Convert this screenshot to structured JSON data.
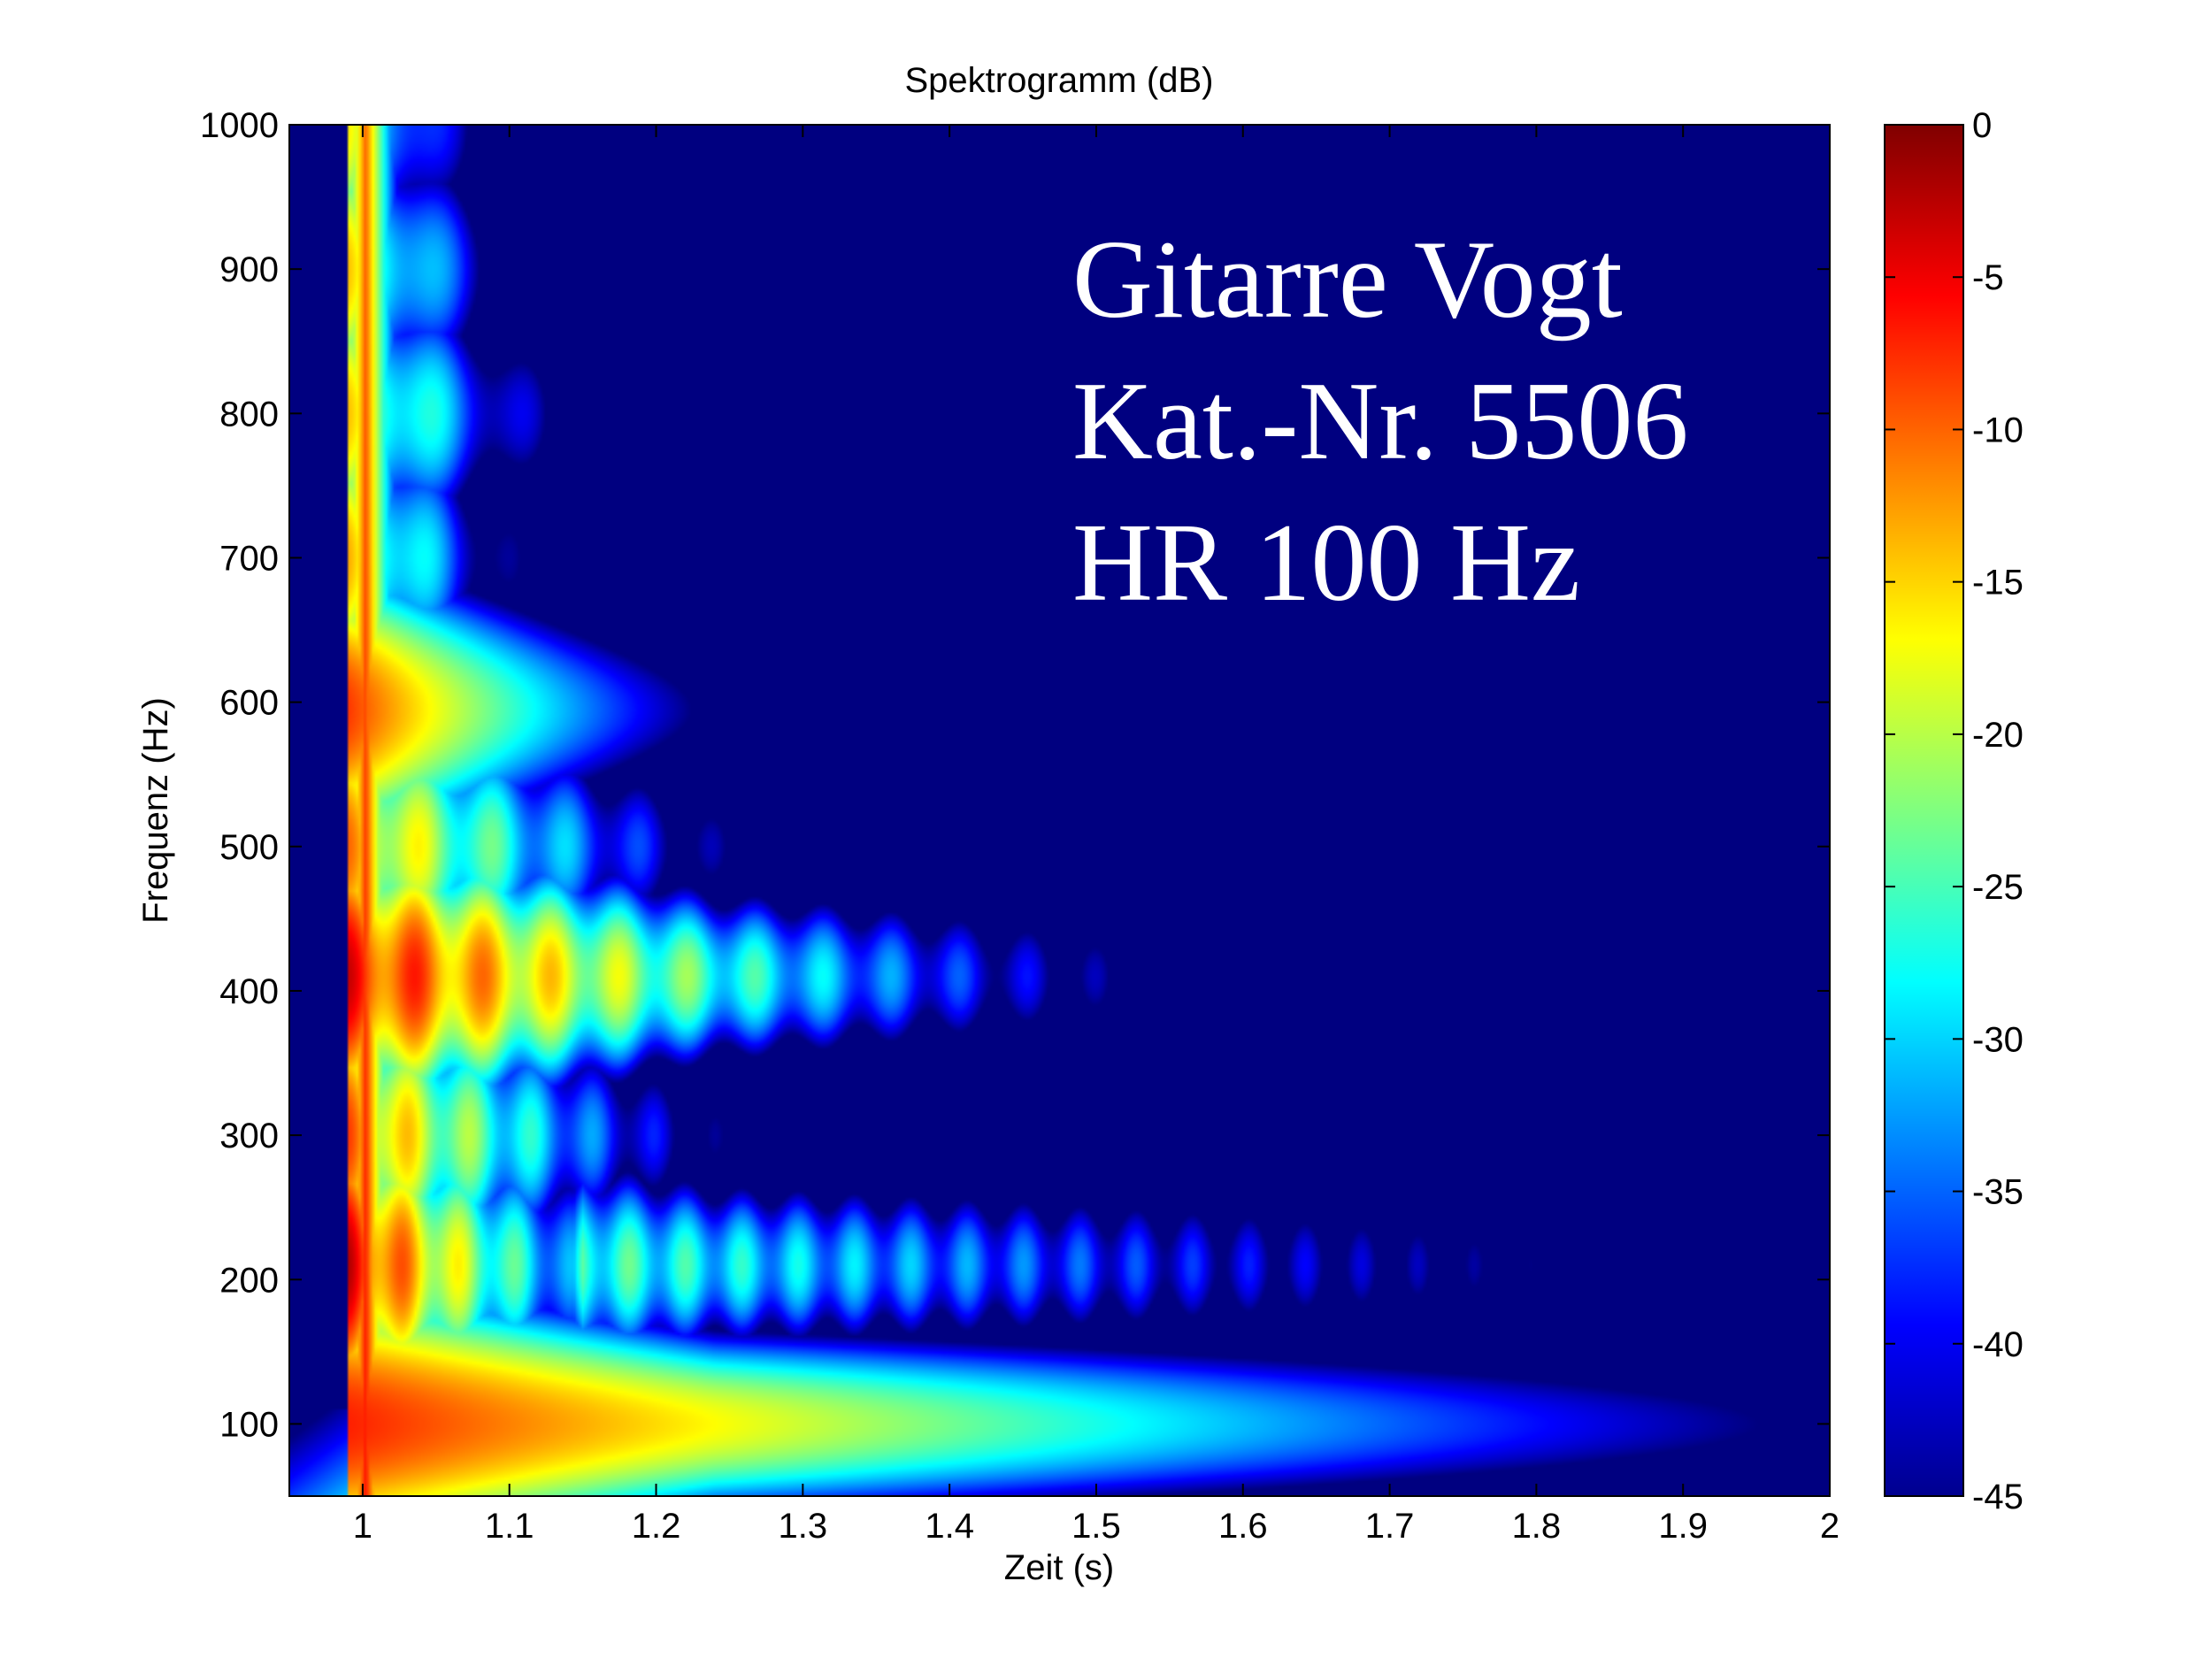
{
  "chart_data": {
    "type": "heatmap",
    "title": "Spektrogramm (dB)",
    "xlabel": "Zeit (s)",
    "ylabel": "Frequenz (Hz)",
    "xlim": [
      0.95,
      2.0
    ],
    "ylim": [
      50,
      1000
    ],
    "x_ticks": [
      1,
      1.1,
      1.2,
      1.3,
      1.4,
      1.5,
      1.6,
      1.7,
      1.8,
      1.9,
      2
    ],
    "y_ticks": [
      100,
      200,
      300,
      400,
      500,
      600,
      700,
      800,
      900,
      1000
    ],
    "colorbar": {
      "range": [
        -45,
        0
      ],
      "ticks": [
        0,
        -5,
        -10,
        -15,
        -20,
        -25,
        -30,
        -35,
        -40,
        -45
      ],
      "colormap": "jet"
    },
    "annotation_lines": [
      "Gitarre Vogt",
      "Kat.-Nr. 5506",
      "HR 100 Hz"
    ],
    "onset_time_s": 0.99,
    "partials": [
      {
        "freq_hz": 100,
        "peak_db": -7,
        "decay_end_s": 1.75,
        "modulated": false
      },
      {
        "freq_hz": 100,
        "peak_db": -38,
        "start_s": 1.78,
        "decay_end_s": 2.0,
        "modulated": true
      },
      {
        "freq_hz": 210,
        "peak_db": -2,
        "decay_end_s": 1.15,
        "modulated": true
      },
      {
        "freq_hz": 210,
        "peak_db": -22,
        "start_s": 1.15,
        "decay_end_s": 2.0,
        "modulated": true
      },
      {
        "freq_hz": 300,
        "peak_db": -8,
        "decay_end_s": 1.2,
        "modulated": true
      },
      {
        "freq_hz": 410,
        "peak_db": -3,
        "decay_end_s": 1.38,
        "modulated": true
      },
      {
        "freq_hz": 500,
        "peak_db": -10,
        "decay_end_s": 1.22,
        "modulated": true
      },
      {
        "freq_hz": 595,
        "peak_db": -8,
        "decay_end_s": 1.18,
        "modulated": false
      },
      {
        "freq_hz": 700,
        "peak_db": -13,
        "decay_end_s": 1.1,
        "modulated": true
      },
      {
        "freq_hz": 800,
        "peak_db": -14,
        "decay_end_s": 1.13,
        "modulated": true
      },
      {
        "freq_hz": 900,
        "peak_db": -14,
        "decay_end_s": 1.1,
        "modulated": true
      },
      {
        "freq_hz": 1000,
        "peak_db": -16,
        "decay_end_s": 1.08,
        "modulated": true
      }
    ]
  }
}
